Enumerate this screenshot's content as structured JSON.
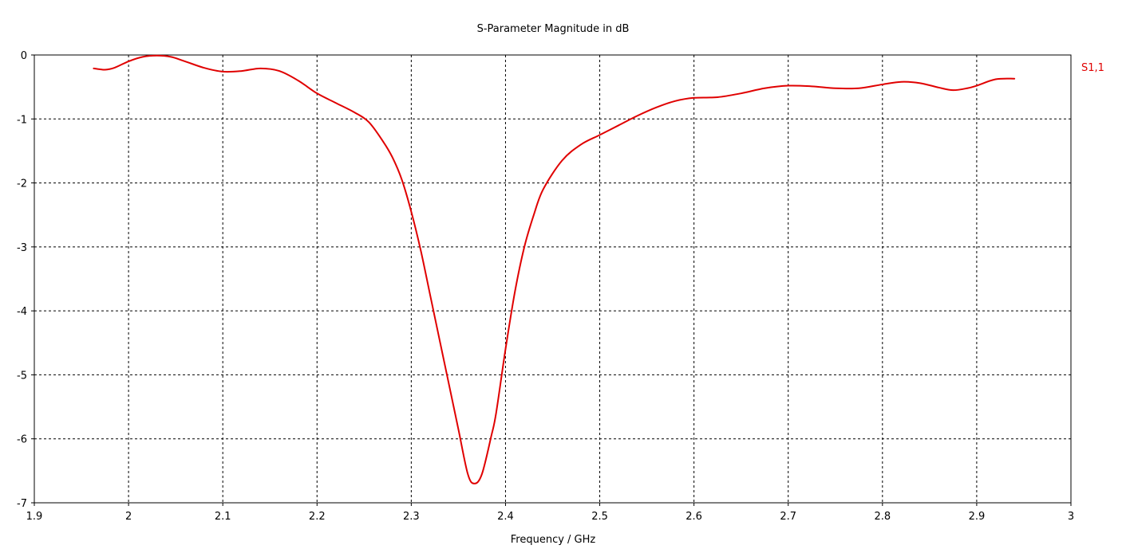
{
  "chart_data": {
    "type": "line",
    "title": "S-Parameter Magnitude in dB",
    "xlabel": "Frequency / GHz",
    "ylabel": "",
    "xlim": [
      1.9,
      3.0
    ],
    "ylim": [
      -7,
      0
    ],
    "x_ticks": [
      "1.9",
      "2",
      "2.1",
      "2.2",
      "2.3",
      "2.4",
      "2.5",
      "2.6",
      "2.7",
      "2.8",
      "2.9",
      "3"
    ],
    "y_ticks": [
      "0",
      "-1",
      "-2",
      "-3",
      "-4",
      "-5",
      "-6",
      "-7"
    ],
    "grid": true,
    "legend_position": "right",
    "series": [
      {
        "name": "S1,1",
        "color": "#e00000",
        "points": [
          [
            1.963,
            -0.21
          ],
          [
            1.975,
            -0.23
          ],
          [
            1.985,
            -0.2
          ],
          [
            2.0,
            -0.1
          ],
          [
            2.015,
            -0.03
          ],
          [
            2.03,
            -0.01
          ],
          [
            2.045,
            -0.03
          ],
          [
            2.06,
            -0.1
          ],
          [
            2.08,
            -0.2
          ],
          [
            2.1,
            -0.26
          ],
          [
            2.12,
            -0.25
          ],
          [
            2.14,
            -0.21
          ],
          [
            2.16,
            -0.25
          ],
          [
            2.18,
            -0.4
          ],
          [
            2.2,
            -0.6
          ],
          [
            2.22,
            -0.75
          ],
          [
            2.24,
            -0.9
          ],
          [
            2.255,
            -1.05
          ],
          [
            2.27,
            -1.35
          ],
          [
            2.28,
            -1.6
          ],
          [
            2.29,
            -1.95
          ],
          [
            2.3,
            -2.45
          ],
          [
            2.31,
            -3.05
          ],
          [
            2.32,
            -3.75
          ],
          [
            2.33,
            -4.45
          ],
          [
            2.34,
            -5.15
          ],
          [
            2.35,
            -5.85
          ],
          [
            2.36,
            -6.55
          ],
          [
            2.367,
            -6.7
          ],
          [
            2.375,
            -6.55
          ],
          [
            2.385,
            -5.95
          ],
          [
            2.39,
            -5.6
          ],
          [
            2.4,
            -4.6
          ],
          [
            2.41,
            -3.7
          ],
          [
            2.42,
            -3.0
          ],
          [
            2.43,
            -2.5
          ],
          [
            2.44,
            -2.1
          ],
          [
            2.46,
            -1.65
          ],
          [
            2.48,
            -1.4
          ],
          [
            2.5,
            -1.25
          ],
          [
            2.52,
            -1.1
          ],
          [
            2.54,
            -0.95
          ],
          [
            2.56,
            -0.82
          ],
          [
            2.58,
            -0.72
          ],
          [
            2.6,
            -0.67
          ],
          [
            2.625,
            -0.66
          ],
          [
            2.65,
            -0.6
          ],
          [
            2.675,
            -0.52
          ],
          [
            2.7,
            -0.48
          ],
          [
            2.725,
            -0.49
          ],
          [
            2.75,
            -0.52
          ],
          [
            2.775,
            -0.52
          ],
          [
            2.8,
            -0.46
          ],
          [
            2.82,
            -0.42
          ],
          [
            2.84,
            -0.44
          ],
          [
            2.86,
            -0.51
          ],
          [
            2.875,
            -0.55
          ],
          [
            2.89,
            -0.52
          ],
          [
            2.9,
            -0.48
          ],
          [
            2.92,
            -0.38
          ],
          [
            2.94,
            -0.37
          ]
        ]
      }
    ]
  }
}
